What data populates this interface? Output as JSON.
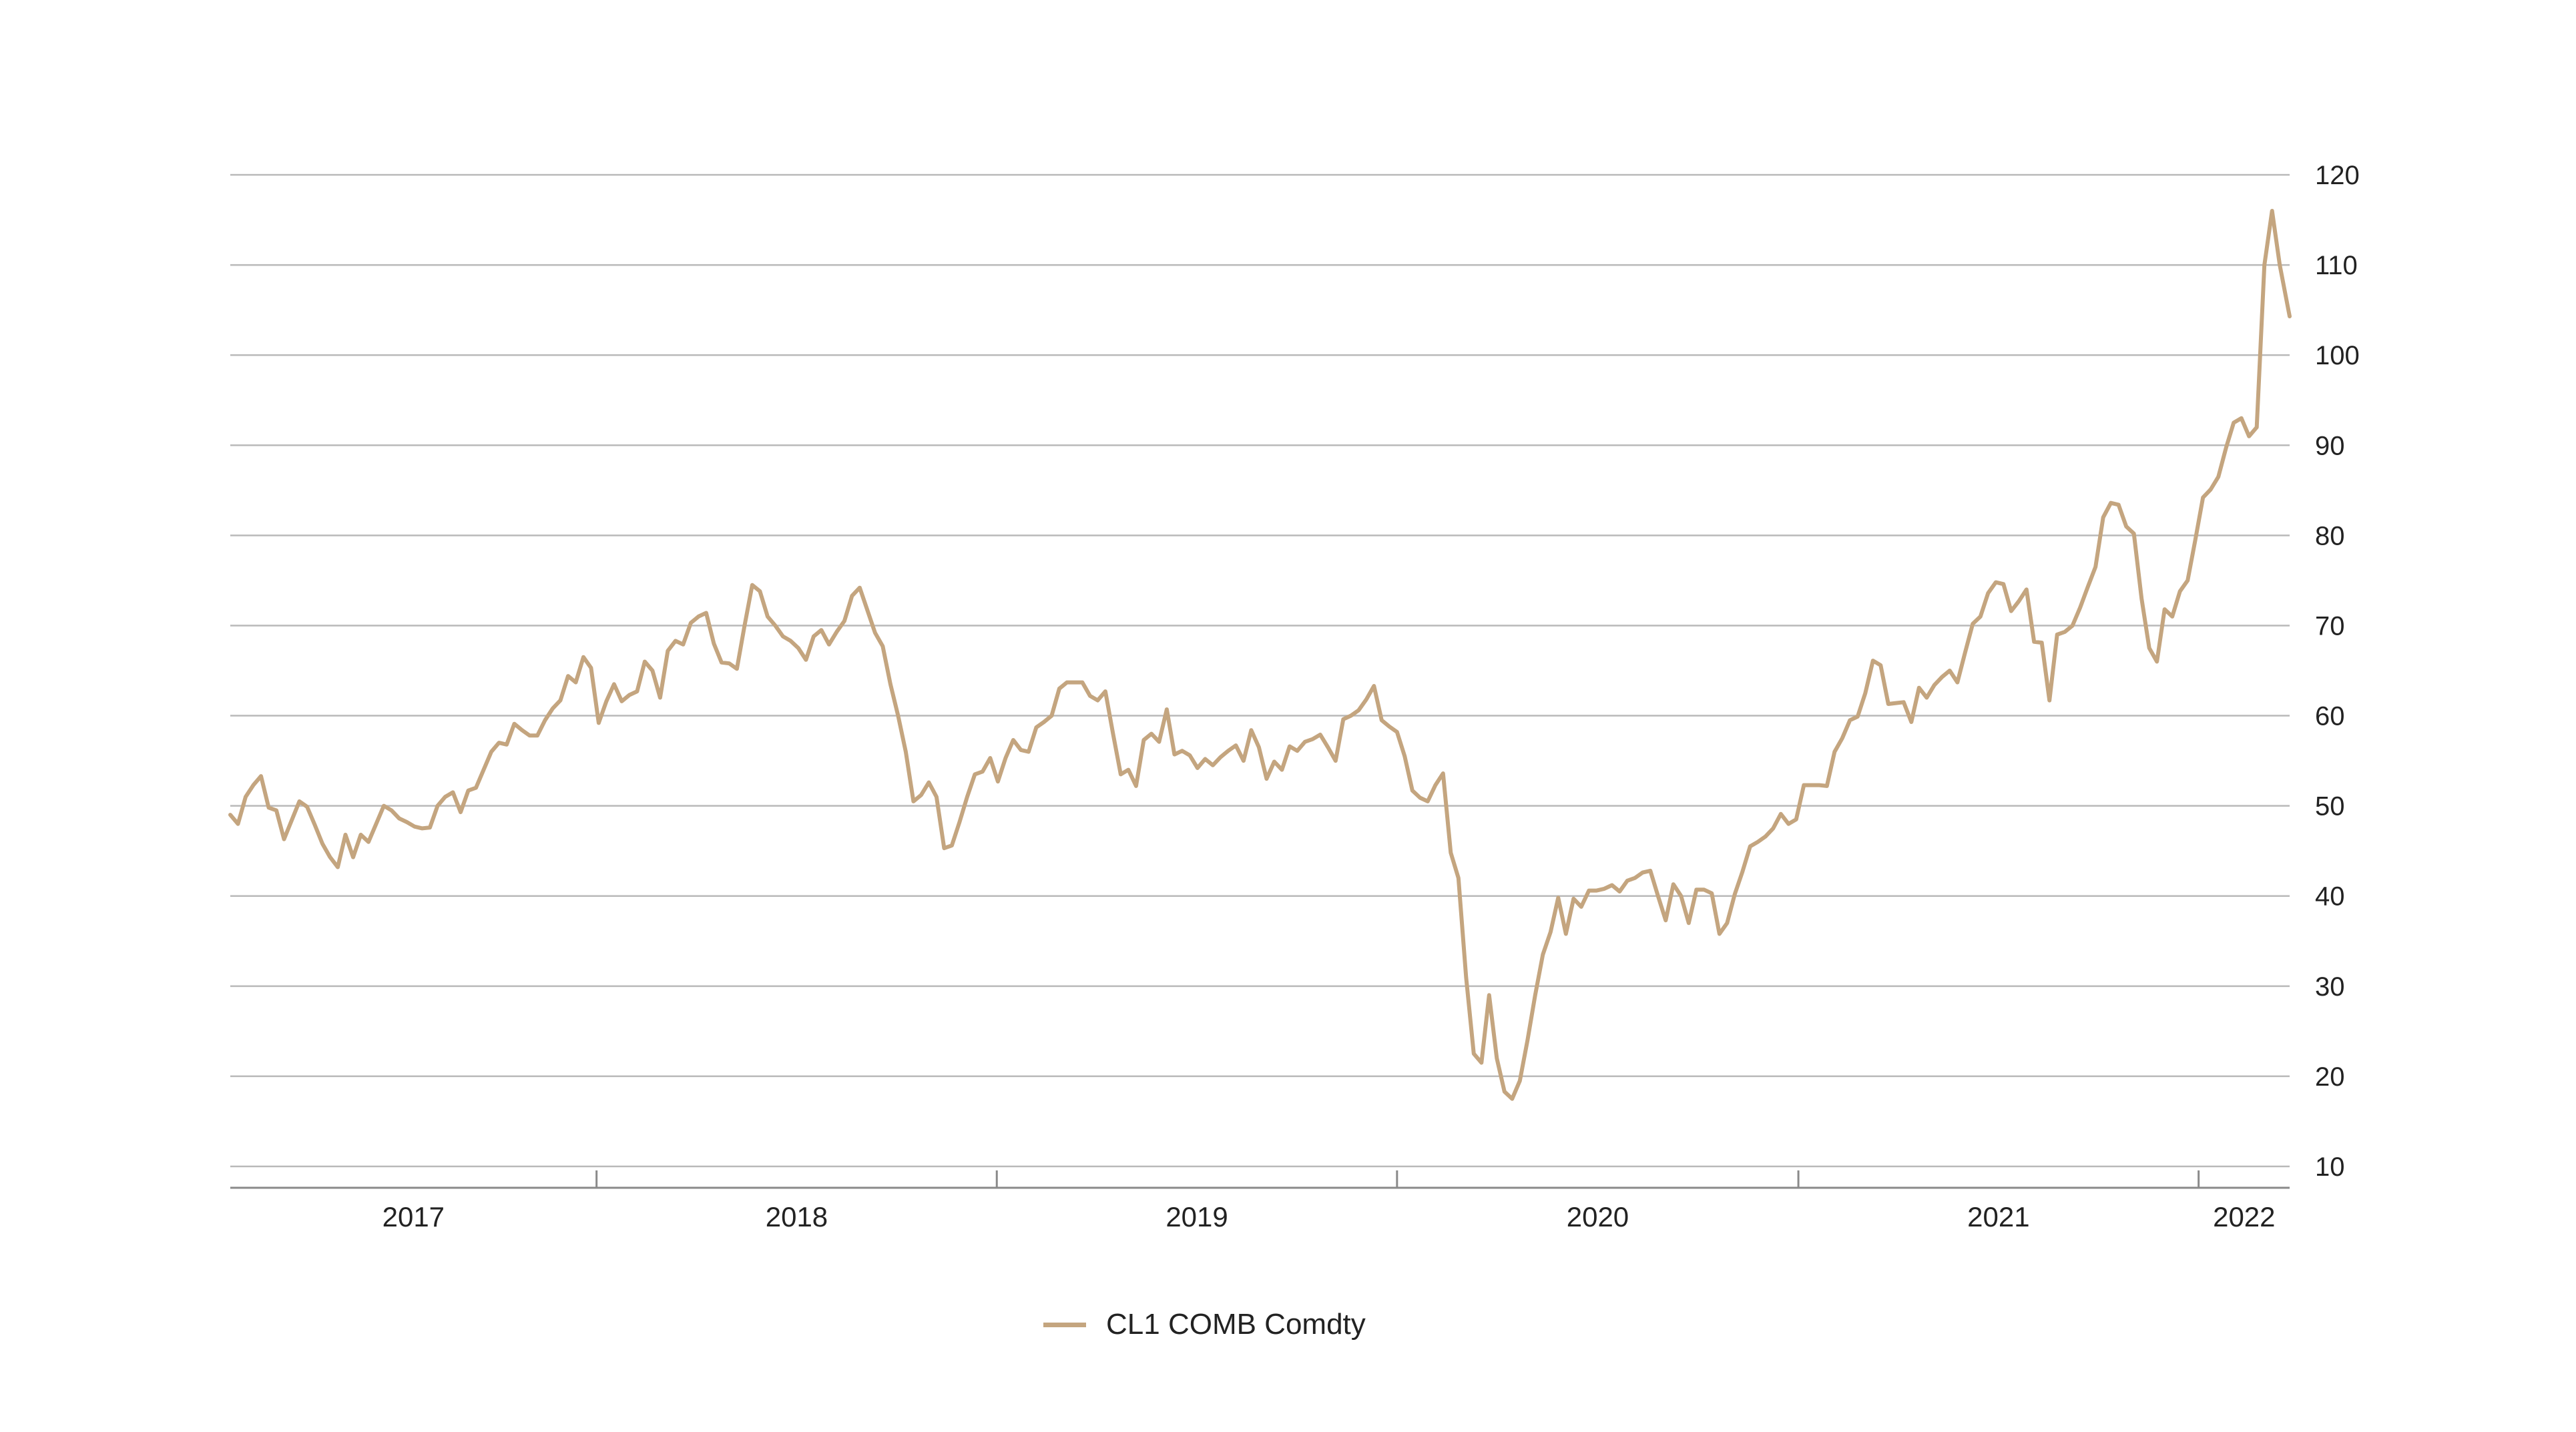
{
  "chart_data": {
    "type": "line",
    "title": "",
    "xlabel": "",
    "ylabel": "",
    "ylim": [
      10,
      120
    ],
    "yticks": [
      "120",
      "110",
      "100",
      "90",
      "80",
      "70",
      "60",
      "50",
      "40",
      "30",
      "20",
      "10"
    ],
    "y_axis_side": "right",
    "grid": true,
    "legend_position": "bottom-center",
    "x_tick_labels": [
      "2017",
      "2018",
      "2019",
      "2020",
      "2021",
      "2022"
    ],
    "x_range": [
      "2017-02-01",
      "2022-03-25"
    ],
    "series": [
      {
        "name": "CL1 COMB Comdty",
        "color": "#c4a57f",
        "x": [
          "2017-02-01",
          "2017-02-08",
          "2017-02-15",
          "2017-02-22",
          "2017-03-01",
          "2017-03-08",
          "2017-03-15",
          "2017-03-22",
          "2017-03-29",
          "2017-04-05",
          "2017-04-12",
          "2017-04-19",
          "2017-04-26",
          "2017-05-03",
          "2017-05-10",
          "2017-05-17",
          "2017-05-24",
          "2017-05-31",
          "2017-06-07",
          "2017-06-14",
          "2017-06-21",
          "2017-06-28",
          "2017-07-05",
          "2017-07-12",
          "2017-07-19",
          "2017-07-26",
          "2017-08-02",
          "2017-08-09",
          "2017-08-16",
          "2017-08-23",
          "2017-08-30",
          "2017-09-06",
          "2017-09-13",
          "2017-09-20",
          "2017-09-27",
          "2017-10-04",
          "2017-10-11",
          "2017-10-18",
          "2017-10-25",
          "2017-11-01",
          "2017-11-08",
          "2017-11-15",
          "2017-11-22",
          "2017-11-29",
          "2017-12-06",
          "2017-12-13",
          "2017-12-20",
          "2017-12-27",
          "2018-01-03",
          "2018-01-10",
          "2018-01-17",
          "2018-01-24",
          "2018-01-31",
          "2018-02-07",
          "2018-02-14",
          "2018-02-21",
          "2018-02-28",
          "2018-03-07",
          "2018-03-14",
          "2018-03-21",
          "2018-03-28",
          "2018-04-04",
          "2018-04-11",
          "2018-04-18",
          "2018-04-25",
          "2018-05-02",
          "2018-05-09",
          "2018-05-16",
          "2018-05-23",
          "2018-05-30",
          "2018-06-06",
          "2018-06-13",
          "2018-06-20",
          "2018-06-27",
          "2018-07-04",
          "2018-07-11",
          "2018-07-18",
          "2018-07-25",
          "2018-08-01",
          "2018-08-08",
          "2018-08-15",
          "2018-08-22",
          "2018-08-29",
          "2018-09-05",
          "2018-09-12",
          "2018-09-19",
          "2018-09-26",
          "2018-10-03",
          "2018-10-10",
          "2018-10-17",
          "2018-10-24",
          "2018-10-31",
          "2018-11-07",
          "2018-11-14",
          "2018-11-21",
          "2018-11-28",
          "2018-12-05",
          "2018-12-12",
          "2018-12-19",
          "2018-12-26",
          "2019-01-02",
          "2019-01-09",
          "2019-01-16",
          "2019-01-23",
          "2019-01-30",
          "2019-02-06",
          "2019-02-13",
          "2019-02-20",
          "2019-02-27",
          "2019-03-06",
          "2019-03-13",
          "2019-03-20",
          "2019-03-27",
          "2019-04-03",
          "2019-04-10",
          "2019-04-17",
          "2019-04-24",
          "2019-05-01",
          "2019-05-08",
          "2019-05-15",
          "2019-05-22",
          "2019-05-29",
          "2019-06-05",
          "2019-06-12",
          "2019-06-19",
          "2019-06-26",
          "2019-07-03",
          "2019-07-10",
          "2019-07-17",
          "2019-07-24",
          "2019-07-31",
          "2019-08-07",
          "2019-08-14",
          "2019-08-21",
          "2019-08-28",
          "2019-09-04",
          "2019-09-11",
          "2019-09-18",
          "2019-09-25",
          "2019-10-02",
          "2019-10-09",
          "2019-10-16",
          "2019-10-23",
          "2019-10-30",
          "2019-11-06",
          "2019-11-13",
          "2019-11-20",
          "2019-11-27",
          "2019-12-04",
          "2019-12-11",
          "2019-12-18",
          "2019-12-25",
          "2020-01-01",
          "2020-01-08",
          "2020-01-15",
          "2020-01-22",
          "2020-01-29",
          "2020-02-05",
          "2020-02-12",
          "2020-02-19",
          "2020-02-26",
          "2020-03-04",
          "2020-03-11",
          "2020-03-18",
          "2020-03-25",
          "2020-04-01",
          "2020-04-08",
          "2020-04-15",
          "2020-04-22",
          "2020-04-29",
          "2020-05-06",
          "2020-05-13",
          "2020-05-20",
          "2020-05-27",
          "2020-06-03",
          "2020-06-10",
          "2020-06-17",
          "2020-06-24",
          "2020-07-01",
          "2020-07-08",
          "2020-07-15",
          "2020-07-22",
          "2020-07-29",
          "2020-08-05",
          "2020-08-12",
          "2020-08-19",
          "2020-08-26",
          "2020-09-02",
          "2020-09-09",
          "2020-09-16",
          "2020-09-23",
          "2020-09-30",
          "2020-10-07",
          "2020-10-14",
          "2020-10-21",
          "2020-10-28",
          "2020-11-04",
          "2020-11-11",
          "2020-11-18",
          "2020-11-25",
          "2020-12-02",
          "2020-12-09",
          "2020-12-16",
          "2020-12-23",
          "2020-12-30",
          "2021-01-06",
          "2021-01-13",
          "2021-01-20",
          "2021-01-27",
          "2021-02-03",
          "2021-02-10",
          "2021-02-17",
          "2021-02-24",
          "2021-03-03",
          "2021-03-10",
          "2021-03-17",
          "2021-03-24",
          "2021-03-31",
          "2021-04-07",
          "2021-04-14",
          "2021-04-21",
          "2021-04-28",
          "2021-05-05",
          "2021-05-12",
          "2021-05-19",
          "2021-05-26",
          "2021-06-02",
          "2021-06-09",
          "2021-06-16",
          "2021-06-23",
          "2021-06-30",
          "2021-07-07",
          "2021-07-14",
          "2021-07-21",
          "2021-07-28",
          "2021-08-04",
          "2021-08-11",
          "2021-08-18",
          "2021-08-25",
          "2021-09-01",
          "2021-09-08",
          "2021-09-15",
          "2021-09-22",
          "2021-09-29",
          "2021-10-06",
          "2021-10-13",
          "2021-10-20",
          "2021-10-27",
          "2021-11-03",
          "2021-11-10",
          "2021-11-17",
          "2021-11-24",
          "2021-12-01",
          "2021-12-08",
          "2021-12-15",
          "2021-12-22",
          "2021-12-29",
          "2022-01-05",
          "2022-01-12",
          "2022-01-19",
          "2022-01-26",
          "2022-02-02",
          "2022-02-09",
          "2022-02-16",
          "2022-02-23",
          "2022-03-02",
          "2022-03-09",
          "2022-03-16",
          "2022-03-25"
        ],
        "values": [
          49.0,
          48.0,
          51.0,
          52.3,
          53.3,
          49.8,
          49.5,
          46.3,
          48.4,
          50.5,
          49.9,
          47.9,
          45.8,
          44.3,
          43.2,
          46.8,
          44.3,
          46.8,
          46.0,
          48.0,
          50.0,
          49.5,
          48.6,
          48.2,
          47.7,
          47.5,
          47.6,
          50.0,
          51.0,
          51.5,
          49.3,
          51.7,
          52.0,
          54.0,
          56.0,
          57.0,
          56.8,
          59.1,
          58.4,
          57.8,
          57.8,
          59.5,
          60.8,
          61.7,
          64.4,
          63.7,
          66.5,
          65.3,
          59.2,
          61.6,
          63.5,
          61.6,
          62.3,
          62.7,
          66.0,
          65.0,
          62.0,
          67.2,
          68.3,
          67.9,
          70.3,
          71.0,
          71.4,
          68.0,
          65.9,
          65.8,
          65.2,
          70.0,
          74.5,
          73.8,
          71.0,
          70.0,
          68.8,
          68.3,
          67.5,
          66.2,
          68.8,
          69.5,
          67.9,
          69.3,
          70.5,
          73.3,
          74.2,
          71.7,
          69.2,
          67.7,
          63.5,
          60.0,
          56.0,
          50.5,
          51.2,
          52.6,
          51.0,
          45.3,
          45.6,
          48.2,
          51.0,
          53.5,
          53.8,
          55.3,
          52.7,
          55.3,
          57.3,
          56.2,
          56.0,
          58.7,
          59.3,
          60.0,
          63.0,
          63.7,
          63.7,
          63.7,
          62.2,
          61.7,
          62.7,
          58.0,
          53.5,
          54.0,
          52.2,
          57.3,
          58.0,
          57.1,
          60.7,
          55.7,
          56.1,
          55.6,
          54.2,
          55.2,
          54.5,
          55.4,
          56.1,
          56.7,
          55.0,
          58.4,
          56.5,
          53.0,
          54.9,
          54.0,
          56.6,
          56.1,
          57.1,
          57.4,
          57.9,
          56.5,
          55.0,
          59.6,
          60.0,
          60.6,
          61.8,
          63.3,
          59.5,
          58.8,
          58.2,
          55.5,
          51.7,
          50.9,
          50.5,
          52.3,
          53.6,
          44.8,
          42.0,
          31.0,
          22.5,
          21.5,
          29.0,
          22.0,
          18.3,
          17.5,
          19.5,
          24.0,
          29.0,
          33.5,
          36.0,
          39.8,
          35.8,
          39.7,
          38.8,
          40.6,
          40.6,
          40.8,
          41.2,
          40.5,
          41.7,
          42.0,
          42.6,
          42.8,
          40.0,
          37.3,
          41.3,
          40.0,
          37.0,
          40.7,
          40.7,
          40.3,
          35.8,
          37.0,
          40.2,
          42.7,
          45.5,
          46.0,
          46.6,
          47.5,
          49.1,
          48.0,
          48.5,
          52.3,
          52.3,
          52.3,
          52.2,
          56.0,
          57.5,
          59.5,
          59.9,
          62.5,
          66.1,
          65.6,
          61.3,
          61.4,
          61.5,
          59.3,
          63.1,
          62.0,
          63.4,
          64.3,
          65.0,
          63.7,
          67.0,
          70.2,
          71.0,
          73.6,
          74.8,
          74.6,
          71.6,
          72.7,
          74.0,
          68.2,
          68.1,
          61.7,
          69.0,
          69.3,
          70.0,
          72.0,
          74.3,
          76.5,
          82.0,
          83.6,
          83.4,
          81.0,
          80.2,
          73.0,
          67.5,
          66.0,
          71.8,
          71.0,
          73.8,
          75.0,
          79.5,
          84.2,
          85.1,
          86.5,
          89.7,
          92.5,
          93.0,
          91.0,
          92.0,
          110.0,
          116.0,
          110.0,
          104.3
        ]
      }
    ]
  }
}
